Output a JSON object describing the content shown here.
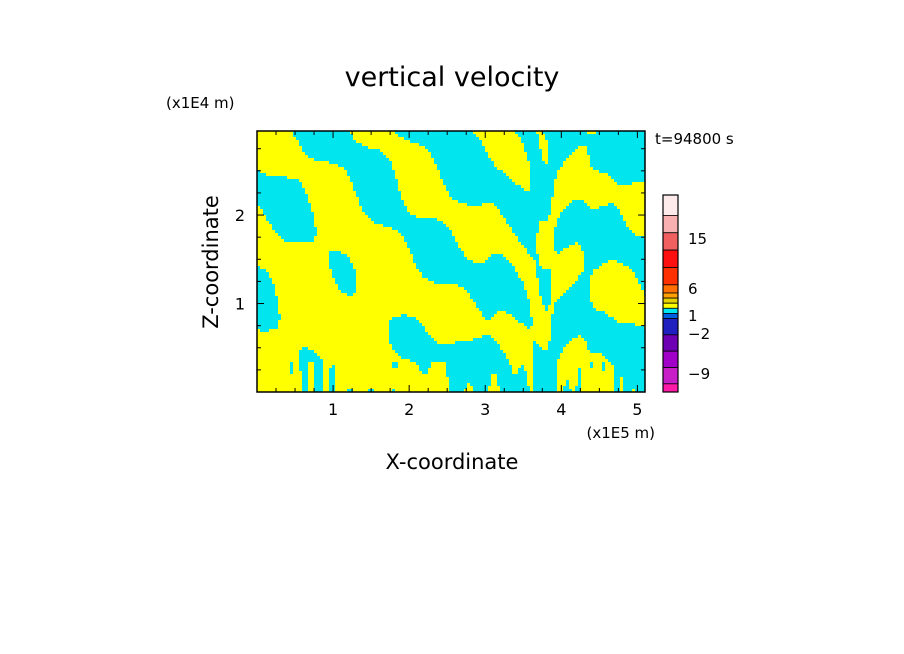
{
  "chart_data": {
    "type": "heatmap",
    "title": "vertical velocity",
    "xlabel": "X-coordinate",
    "ylabel": "Z-coordinate",
    "x_scale_note": "(x1E5 m)",
    "y_scale_note": "(x1E4 m)",
    "time_label": "t=94800 s",
    "xlim": [
      0,
      5.1
    ],
    "ylim": [
      0,
      2.95
    ],
    "x_ticks": [
      1,
      2,
      3,
      4,
      5
    ],
    "y_ticks": [
      1,
      2
    ],
    "x_tick_labels": [
      "1",
      "2",
      "3",
      "4",
      "5"
    ],
    "y_tick_labels": [
      "1",
      "2"
    ],
    "field_colors": {
      "positive": "#ffff00",
      "negative": "#00e5ee"
    },
    "colorbar": {
      "levels": [
        {
          "color": "#ff1aa8"
        },
        {
          "color": "#c81ec8"
        },
        {
          "color": "#a000c8"
        },
        {
          "color": "#6e00b4"
        },
        {
          "color": "#2020c0"
        },
        {
          "color": "#0060e0"
        },
        {
          "color": "#00e5ee"
        },
        {
          "color": "#ffff00"
        },
        {
          "color": "#e6d200"
        },
        {
          "color": "#ffa000"
        },
        {
          "color": "#ff7000"
        },
        {
          "color": "#ff3000"
        },
        {
          "color": "#ff1010"
        },
        {
          "color": "#f06060"
        },
        {
          "color": "#f8b0b0"
        },
        {
          "color": "#fdeaea"
        }
      ],
      "labels": [
        {
          "text": "15",
          "value": 15
        },
        {
          "text": "6",
          "value": 6
        },
        {
          "text": "1",
          "value": 1
        },
        {
          "text": "−2",
          "value": -2
        },
        {
          "text": "−9",
          "value": -9
        }
      ]
    }
  }
}
